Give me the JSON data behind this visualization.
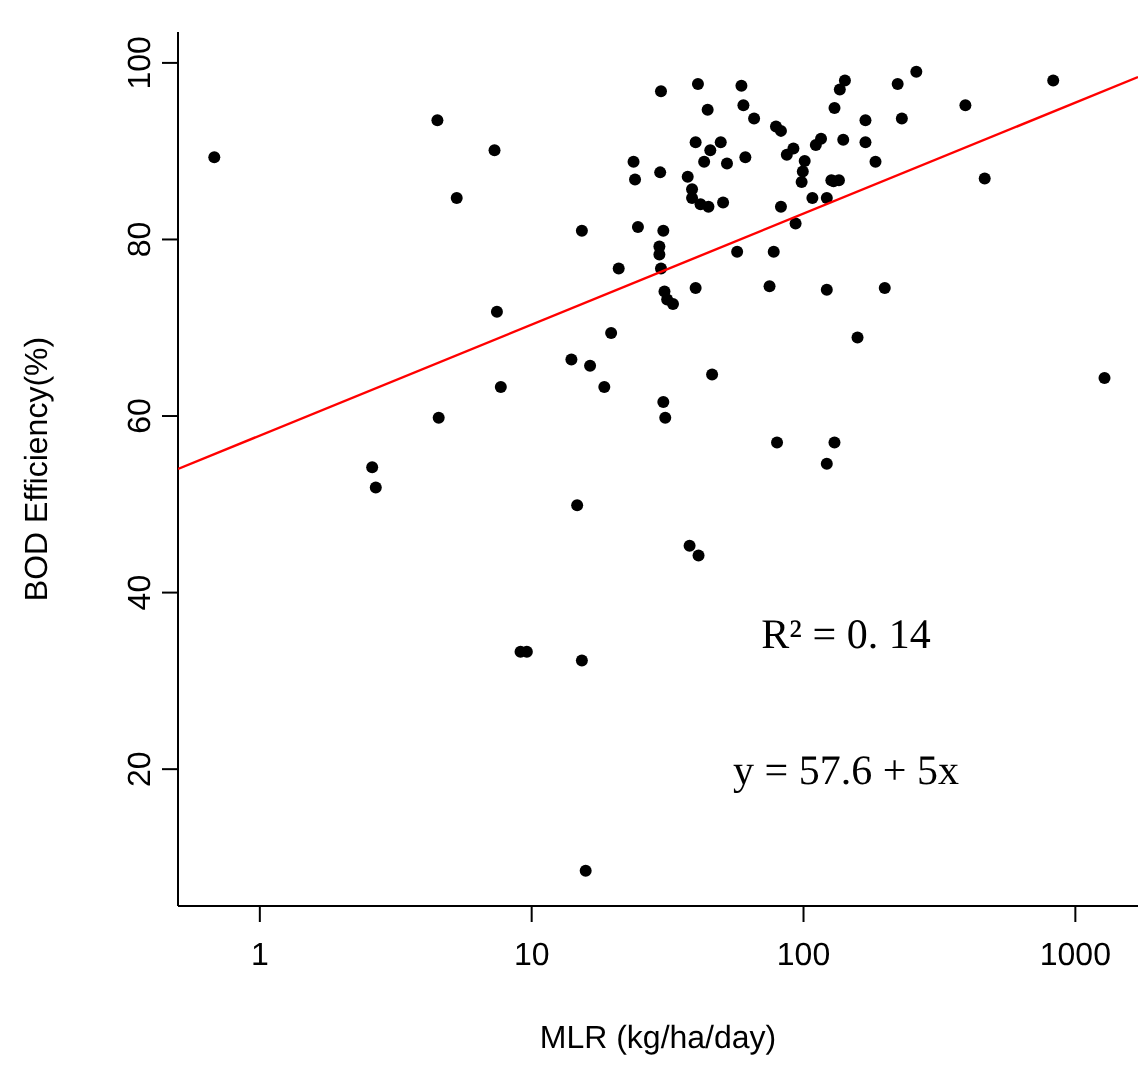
{
  "chart_data": {
    "type": "scatter",
    "xlabel": "MLR (kg/ha/day)",
    "ylabel": "BOD Efficiency(%)",
    "log": "x",
    "xlim": [
      0.5,
      1700
    ],
    "xticks": [
      1,
      10,
      100,
      1000
    ],
    "ylim": [
      4.5,
      103.5
    ],
    "yticks": [
      20,
      40,
      60,
      80,
      100
    ],
    "annotations": [
      "R² = 0. 14",
      "y = 57.6 + 5x"
    ],
    "series": [
      {
        "color": "#000000",
        "marker": "circle",
        "x": [
          0.68,
          4.5,
          7.3,
          5.3,
          15.3,
          20.9,
          7.45,
          19.6,
          14,
          16.4,
          18.5,
          7.7,
          4.55,
          2.59,
          2.67,
          14.7,
          23.7,
          24,
          24.6,
          29.9,
          29.7,
          30.5,
          29.5,
          29.5,
          29.9,
          30.8,
          31.5,
          33.1,
          30.5,
          31,
          40.9,
          44.4,
          40.1,
          45.4,
          43.1,
          49.6,
          52.3,
          37.5,
          38.9,
          38.9,
          41.8,
          44.7,
          50.6,
          59.1,
          60.1,
          65.8,
          61.1,
          79.2,
          82.6,
          86.8,
          91.8,
          101,
          99.4,
          98.4,
          111,
          116,
          107.8,
          121.8,
          126.6,
          129,
          135,
          82.6,
          93.5,
          130,
          136,
          142,
          140,
          169,
          169,
          184,
          222,
          230,
          260,
          394,
          464,
          829,
          1280,
          57,
          77.7,
          40.1,
          75,
          121.8,
          199,
          158,
          46.1,
          79.9,
          130,
          121.8,
          38.1,
          41.1,
          9.1,
          9.6,
          15.3,
          15.8
        ],
        "values": [
          89.3,
          93.5,
          90.1,
          84.7,
          81.0,
          76.7,
          71.8,
          69.4,
          66.4,
          65.7,
          63.3,
          63.3,
          59.8,
          54.2,
          51.9,
          49.9,
          88.8,
          86.8,
          81.4,
          96.8,
          87.6,
          81.0,
          79.2,
          78.3,
          76.7,
          74.1,
          73.2,
          72.7,
          61.6,
          59.8,
          97.6,
          94.7,
          91.0,
          90.1,
          88.8,
          91.0,
          88.6,
          87.1,
          85.7,
          84.7,
          84.0,
          83.7,
          84.2,
          97.4,
          95.2,
          93.7,
          89.3,
          92.8,
          92.3,
          89.6,
          90.3,
          88.9,
          87.7,
          86.5,
          90.7,
          91.4,
          84.7,
          84.7,
          86.7,
          86.6,
          86.7,
          83.7,
          81.8,
          94.9,
          97.0,
          98.0,
          91.3,
          93.5,
          91.0,
          88.8,
          97.6,
          93.7,
          99.0,
          95.2,
          86.9,
          98.0,
          64.3,
          78.6,
          78.6,
          74.5,
          74.7,
          74.3,
          74.5,
          68.9,
          64.7,
          57.0,
          57.0,
          54.6,
          45.3,
          44.2,
          33.3,
          33.3,
          32.3,
          8.5
        ]
      },
      {
        "type": "line",
        "marker": "none",
        "color": "#ff0000",
        "x": [
          0.5,
          1700
        ],
        "values": [
          54,
          98.4
        ]
      }
    ]
  }
}
